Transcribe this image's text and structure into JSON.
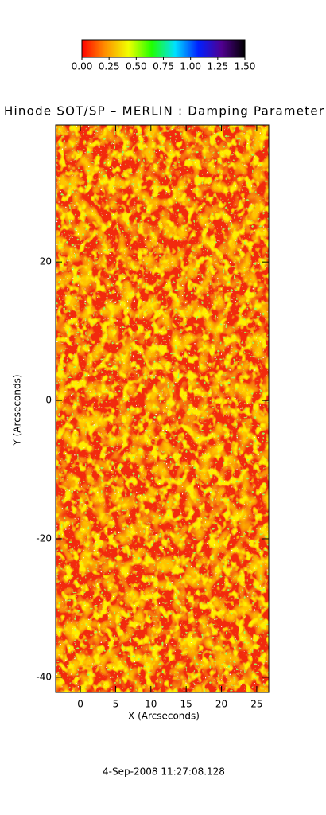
{
  "chart_data": {
    "type": "heatmap",
    "title": "Hinode SOT/SP – MERLIN : Damping Parameter",
    "xlabel": "X (Arcseconds)",
    "ylabel": "Y (Arcseconds)",
    "footer": "4-Sep-2008 11:27:08.128",
    "xlim": [
      -3.5,
      26.7
    ],
    "ylim": [
      -42.2,
      39.8
    ],
    "xticks": [
      0,
      5,
      10,
      15,
      20,
      25
    ],
    "yticks": [
      -40,
      -20,
      0,
      20
    ],
    "colorbar": {
      "clim": [
        0,
        1.5
      ],
      "colors": [
        "#ff0000",
        "#ff9000",
        "#f0ff00",
        "#20ff00",
        "#00e0ff",
        "#0020ff",
        "#500090",
        "#000000"
      ],
      "ticks": [
        {
          "value": 0,
          "label": "0.00"
        },
        {
          "value": 0.25,
          "label": "0.25"
        },
        {
          "value": 0.5,
          "label": "0.50"
        },
        {
          "value": 0.75,
          "label": "0.75"
        },
        {
          "value": 1,
          "label": "1.00"
        },
        {
          "value": 1.25,
          "label": "1.25"
        },
        {
          "value": 1.5,
          "label": "1.50"
        }
      ]
    }
  }
}
